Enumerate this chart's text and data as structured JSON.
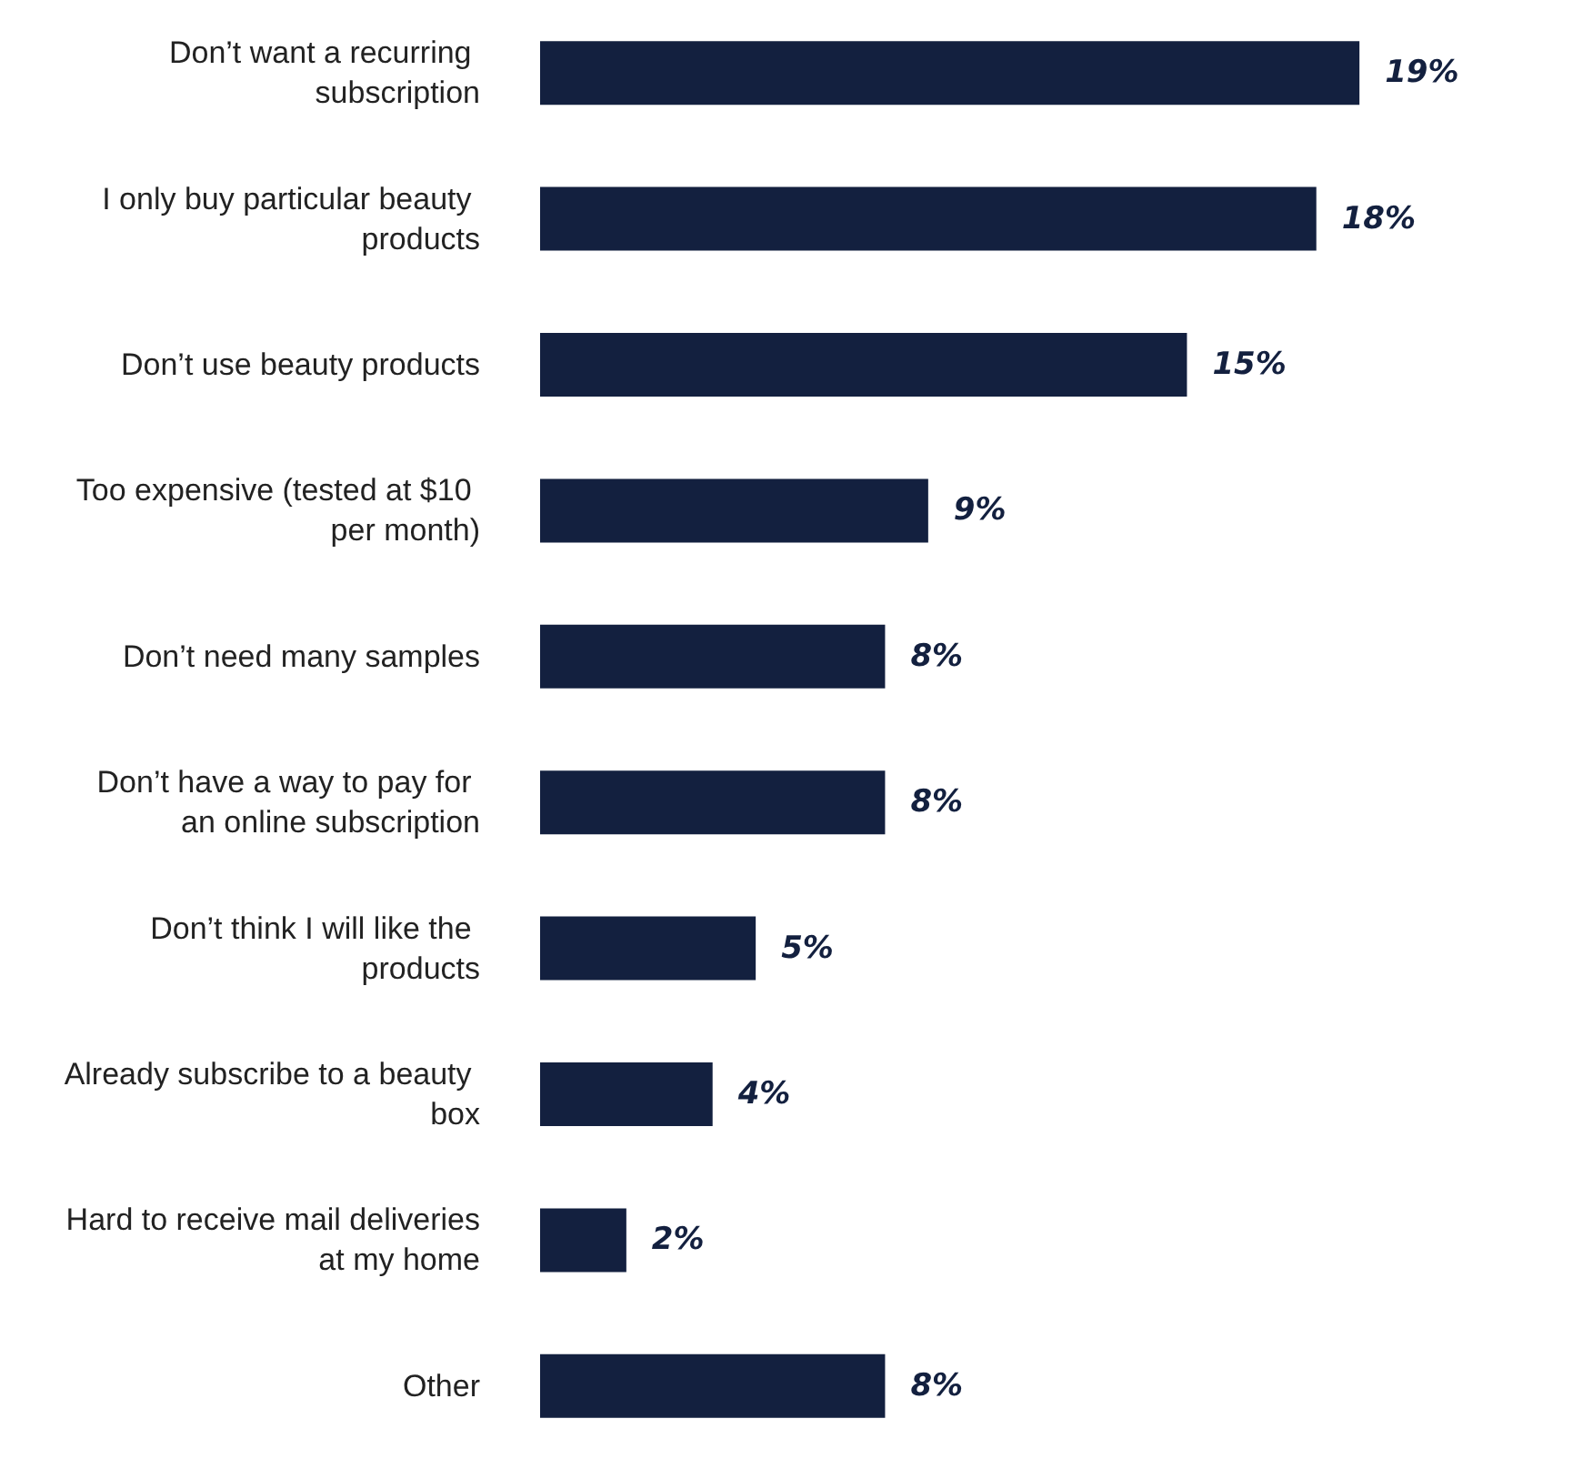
{
  "chart_data": {
    "type": "bar",
    "orientation": "horizontal",
    "categories": [
      "Don’t want a recurring subscription",
      "I only buy particular beauty products",
      "Don’t use beauty products",
      "Too expensive (tested at $10 per month)",
      "Don’t need many samples",
      "Don’t have a way to pay for an online subscription",
      "Don’t think I will like the products",
      "Already subscribe to a beauty box",
      "Hard to receive mail deliveries at my home",
      "Other"
    ],
    "values": [
      19,
      18,
      15,
      9,
      8,
      8,
      5,
      4,
      2,
      8
    ],
    "value_labels": [
      "19%",
      "18%",
      "15%",
      "9%",
      "8%",
      "8%",
      "5%",
      "4%",
      "2%",
      "8%"
    ],
    "color": "#13203f"
  }
}
